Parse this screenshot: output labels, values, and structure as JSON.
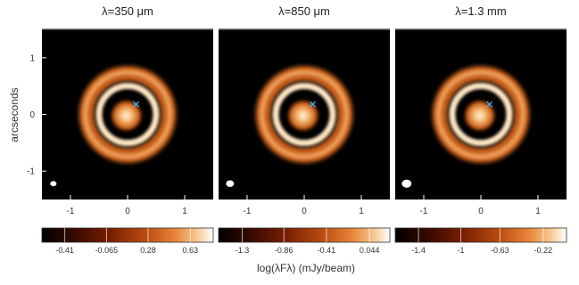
{
  "chart_data": [
    {
      "type": "heatmap",
      "title": "λ=350 μm",
      "ylabel": "arcseconds",
      "xlim": [
        -1.5,
        1.5
      ],
      "ylim": [
        -1.5,
        1.5
      ],
      "x_ticks": [
        "-1",
        "0",
        "1"
      ],
      "y_ticks": [
        "1",
        "0",
        "-1"
      ],
      "peak_marker": {
        "symbol": "x",
        "x": 0.15,
        "y": 0.18
      },
      "beam": {
        "x": -1.3,
        "y": -1.22,
        "size": 0.11
      },
      "colorbar": {
        "ticks": [
          "-0.41",
          "-0.065",
          "0.28",
          "0.63"
        ],
        "min": -0.6,
        "max": 0.82
      }
    },
    {
      "type": "heatmap",
      "title": "λ=850 μm",
      "xlim": [
        -1.5,
        1.5
      ],
      "ylim": [
        -1.5,
        1.5
      ],
      "x_ticks": [
        "-1",
        "0",
        "1"
      ],
      "peak_marker": {
        "symbol": "x",
        "x": 0.15,
        "y": 0.18
      },
      "beam": {
        "x": -1.3,
        "y": -1.22,
        "size": 0.14
      },
      "colorbar": {
        "ticks": [
          "-1.3",
          "-0.86",
          "-0.41",
          "0.044"
        ],
        "min": -1.55,
        "max": 0.26
      }
    },
    {
      "type": "heatmap",
      "title": "λ=1.3 mm",
      "xlim": [
        -1.5,
        1.5
      ],
      "ylim": [
        -1.5,
        1.5
      ],
      "x_ticks": [
        "-1",
        "0",
        "1"
      ],
      "peak_marker": {
        "symbol": "x",
        "x": 0.15,
        "y": 0.18
      },
      "beam": {
        "x": -1.3,
        "y": -1.22,
        "size": 0.17
      },
      "colorbar": {
        "ticks": [
          "-1.4",
          "-1",
          "-0.63",
          "-0.22"
        ],
        "min": -1.62,
        "max": 0.0
      }
    }
  ],
  "colorbar_label": "log(λFλ) (mJy/beam)",
  "colormap": [
    "#000000",
    "#3a0a00",
    "#7a2000",
    "#b84a10",
    "#e8853a",
    "#f7c48c",
    "#ffffff"
  ]
}
